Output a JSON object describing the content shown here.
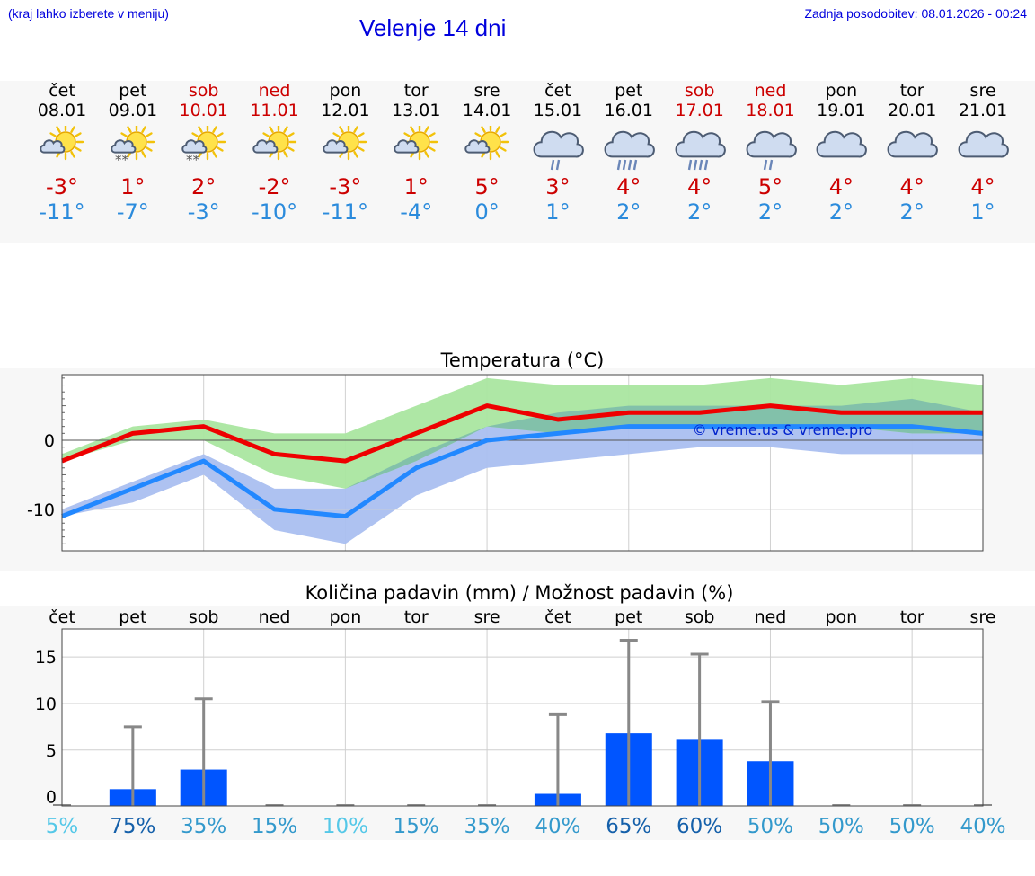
{
  "header": {
    "left_note": "(kraj lahko izberete v meniju)",
    "title": "Velenje 14 dni",
    "right_note": "Zadnja posodobitev: 08.01.2026 - 00:24"
  },
  "days": [
    {
      "name": "čet",
      "date": "08.01",
      "weekend": false,
      "icon": "sun-cloud-icon",
      "max": "-3°",
      "min": "-11°"
    },
    {
      "name": "pet",
      "date": "09.01",
      "weekend": false,
      "icon": "sun-cloud-snow-icon",
      "max": "1°",
      "min": "-7°"
    },
    {
      "name": "sob",
      "date": "10.01",
      "weekend": true,
      "icon": "sun-cloud-snow-icon",
      "max": "2°",
      "min": "-3°"
    },
    {
      "name": "ned",
      "date": "11.01",
      "weekend": true,
      "icon": "sun-cloud-icon",
      "max": "-2°",
      "min": "-10°"
    },
    {
      "name": "pon",
      "date": "12.01",
      "weekend": false,
      "icon": "sun-cloud-icon",
      "max": "-3°",
      "min": "-11°"
    },
    {
      "name": "tor",
      "date": "13.01",
      "weekend": false,
      "icon": "sun-cloud-icon",
      "max": "1°",
      "min": "-4°"
    },
    {
      "name": "sre",
      "date": "14.01",
      "weekend": false,
      "icon": "sun-cloud-icon",
      "max": "5°",
      "min": "0°"
    },
    {
      "name": "čet",
      "date": "15.01",
      "weekend": false,
      "icon": "cloud-light-rain-icon",
      "max": "3°",
      "min": "1°"
    },
    {
      "name": "pet",
      "date": "16.01",
      "weekend": false,
      "icon": "cloud-rain-icon",
      "max": "4°",
      "min": "2°"
    },
    {
      "name": "sob",
      "date": "17.01",
      "weekend": true,
      "icon": "cloud-rain-icon",
      "max": "4°",
      "min": "2°"
    },
    {
      "name": "ned",
      "date": "18.01",
      "weekend": true,
      "icon": "cloud-light-rain-icon",
      "max": "5°",
      "min": "2°"
    },
    {
      "name": "pon",
      "date": "19.01",
      "weekend": false,
      "icon": "cloud-icon",
      "max": "4°",
      "min": "2°"
    },
    {
      "name": "tor",
      "date": "20.01",
      "weekend": false,
      "icon": "cloud-icon",
      "max": "4°",
      "min": "2°"
    },
    {
      "name": "sre",
      "date": "21.01",
      "weekend": false,
      "icon": "cloud-icon",
      "max": "4°",
      "min": "1°"
    }
  ],
  "colors": {
    "max": "#ee0000",
    "min": "#2288ff",
    "max_band": "#aae6a0",
    "min_band": "#aabff0",
    "overlap_band": "#7fbfaa",
    "bar": "#0055ff",
    "whisker": "#888888",
    "prob_low": "#55c8e8",
    "prob_mid": "#3399cc",
    "prob_high": "#1560aa"
  },
  "chart_data": [
    {
      "type": "line",
      "title": "Temperatura (°C)",
      "xlabel": "",
      "ylabel": "",
      "ylim": [
        -16,
        9.5
      ],
      "yticks": [
        -10,
        0
      ],
      "grid": true,
      "watermark": "© vreme.us & vreme.pro",
      "categories": [
        "08.01",
        "09.01",
        "10.01",
        "11.01",
        "12.01",
        "13.01",
        "14.01",
        "15.01",
        "16.01",
        "17.01",
        "18.01",
        "19.01",
        "20.01",
        "21.01"
      ],
      "series": [
        {
          "name": "max",
          "values": [
            -3,
            1,
            2,
            -2,
            -3,
            1,
            5,
            3,
            4,
            4,
            5,
            4,
            4,
            4
          ]
        },
        {
          "name": "min",
          "values": [
            -11,
            -7,
            -3,
            -10,
            -11,
            -4,
            0,
            1,
            2,
            2,
            2,
            2,
            2,
            1
          ]
        },
        {
          "name": "max_range_low",
          "values": [
            -3,
            0,
            0,
            -5,
            -7,
            -3,
            2,
            1,
            2,
            2,
            2,
            2,
            1,
            1
          ]
        },
        {
          "name": "max_range_high",
          "values": [
            -2,
            2,
            3,
            1,
            1,
            5,
            9,
            8,
            8,
            8,
            9,
            8,
            9,
            8
          ]
        },
        {
          "name": "min_range_low",
          "values": [
            -11,
            -9,
            -5,
            -13,
            -15,
            -8,
            -4,
            -3,
            -2,
            -1,
            -1,
            -2,
            -2,
            -2
          ]
        },
        {
          "name": "min_range_high",
          "values": [
            -10,
            -6,
            -2,
            -7,
            -7,
            -2,
            2,
            4,
            5,
            5,
            5,
            5,
            6,
            4
          ]
        }
      ]
    },
    {
      "type": "bar",
      "title": "Količina padavin (mm) / Možnost padavin (%)",
      "xlabel": "",
      "ylabel": "",
      "ylim": [
        -1,
        18
      ],
      "yticks": [
        0,
        5,
        10,
        15
      ],
      "grid": true,
      "categories": [
        "čet",
        "pet",
        "sob",
        "ned",
        "pon",
        "tor",
        "sre",
        "čet",
        "pet",
        "sob",
        "ned",
        "pon",
        "tor",
        "sre"
      ],
      "series": [
        {
          "name": "padavine (mm)",
          "values": [
            0,
            0.8,
            2.9,
            0,
            0,
            0,
            0,
            0.3,
            6.8,
            6.1,
            3.8,
            0,
            0,
            0
          ]
        },
        {
          "name": "maksimum (mm)",
          "values": [
            0,
            7.5,
            10.5,
            0,
            0,
            0,
            0,
            8.8,
            16.8,
            15.3,
            10.2,
            0,
            0,
            0
          ]
        }
      ],
      "probabilities": [
        "5%",
        "75%",
        "35%",
        "15%",
        "10%",
        "15%",
        "35%",
        "40%",
        "65%",
        "60%",
        "50%",
        "50%",
        "50%",
        "40%"
      ]
    }
  ]
}
